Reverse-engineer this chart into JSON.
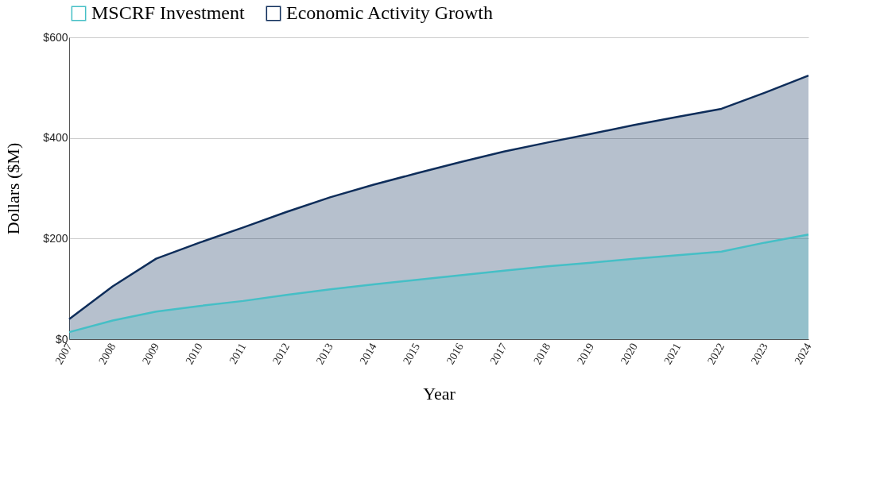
{
  "chart_data": {
    "type": "area",
    "xlabel": "Year",
    "ylabel": "Dollars ($M)",
    "categories": [
      "2007",
      "2008",
      "2009",
      "2010",
      "2011",
      "2012",
      "2013",
      "2014",
      "2015",
      "2016",
      "2017",
      "2018",
      "2019",
      "2020",
      "2021",
      "2022",
      "2023",
      "2024"
    ],
    "series": [
      {
        "name": "MSCRF Investment",
        "color": "#45bfc6",
        "values": [
          14,
          37,
          55,
          66,
          76,
          88,
          99,
          109,
          118,
          127,
          136,
          145,
          152,
          160,
          167,
          174,
          192,
          208
        ]
      },
      {
        "name": "Economic Activity Growth",
        "color": "#0e2d5a",
        "values": [
          40,
          105,
          160,
          192,
          222,
          253,
          282,
          307,
          330,
          352,
          373,
          391,
          408,
          426,
          442,
          458,
          490,
          524
        ]
      }
    ],
    "ylim": [
      0,
      600
    ],
    "yticks": [
      {
        "value": 0,
        "label": "$0"
      },
      {
        "value": 200,
        "label": "$200"
      },
      {
        "value": 400,
        "label": "$400"
      },
      {
        "value": 600,
        "label": "$600"
      }
    ],
    "grid": "y",
    "legend": "top"
  }
}
